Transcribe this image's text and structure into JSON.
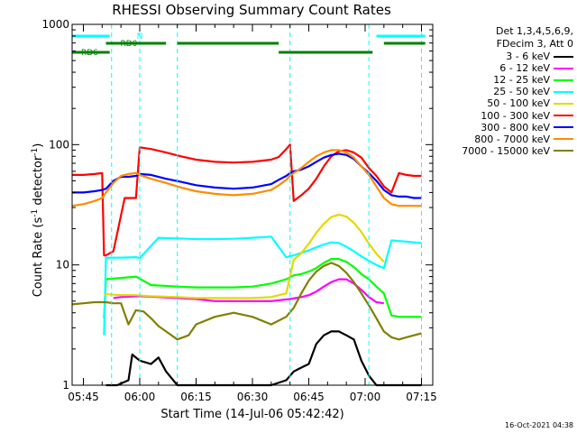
{
  "chart_data": {
    "type": "line",
    "title": "RHESSI Observing Summary Count Rates",
    "xlabel": "Start Time (14-Jul-06 05:42:42)",
    "ylabel_main": "Count Rate (s",
    "ylabel_sup1": "-1",
    "ylabel_mid": " detector",
    "ylabel_sup2": "-1",
    "ylabel_end": ")",
    "y_scale": "log",
    "ylim": [
      1,
      1000
    ],
    "xlim_minutes": [
      -3,
      93
    ],
    "x_ticks": [
      {
        "min": 0,
        "label": "05:45"
      },
      {
        "min": 15,
        "label": "06:00"
      },
      {
        "min": 30,
        "label": "06:15"
      },
      {
        "min": 45,
        "label": "06:30"
      },
      {
        "min": 60,
        "label": "06:45"
      },
      {
        "min": 75,
        "label": "07:00"
      },
      {
        "min": 90,
        "label": "07:15"
      }
    ],
    "y_ticks": [
      {
        "value": 1,
        "label": "1"
      },
      {
        "value": 10,
        "label": "10"
      },
      {
        "value": 100,
        "label": "100"
      },
      {
        "value": 1000,
        "label": "1000"
      }
    ],
    "legend_header": [
      "Det 1,3,4,5,6,9,",
      "FDecim 3, Att 0"
    ],
    "series": [
      {
        "name": "3 - 6 keV",
        "color": "#000000",
        "x": [
          6,
          7,
          9,
          12,
          13,
          15,
          18,
          20,
          22,
          25,
          30,
          35,
          40,
          45,
          50,
          54,
          56,
          58,
          60,
          62,
          64,
          66,
          68,
          70,
          72,
          74,
          76,
          78,
          80,
          82,
          84,
          86,
          88,
          90
        ],
        "y": [
          1,
          1,
          1,
          1.1,
          1.8,
          1.6,
          1.5,
          1.7,
          1.3,
          1,
          1,
          1,
          1,
          1,
          1,
          1.1,
          1.3,
          1.4,
          1.5,
          2.2,
          2.6,
          2.8,
          2.8,
          2.6,
          2.4,
          1.6,
          1.2,
          1,
          1,
          1,
          1,
          1,
          1,
          1
        ]
      },
      {
        "name": "6 - 12 keV",
        "color": "#ff00ff",
        "x": [
          8,
          10,
          15,
          20,
          25,
          30,
          35,
          40,
          45,
          50,
          55,
          58,
          60,
          62,
          64,
          66,
          68,
          70,
          72,
          74,
          76,
          78,
          80
        ],
        "y": [
          5.3,
          5.4,
          5.5,
          5.4,
          5.3,
          5.2,
          5.0,
          5.0,
          5.0,
          5.0,
          5.2,
          5.4,
          5.6,
          6.0,
          6.6,
          7.2,
          7.6,
          7.6,
          7.0,
          6.2,
          5.4,
          4.9,
          4.8
        ]
      },
      {
        "name": "12 - 25 keV",
        "color": "#00ff00",
        "x": [
          5.5,
          6,
          10,
          14,
          18,
          25,
          30,
          35,
          40,
          45,
          50,
          54,
          56,
          58,
          60,
          62,
          64,
          66,
          68,
          70,
          72,
          74,
          76,
          78,
          80,
          82,
          84,
          86,
          88,
          90
        ],
        "y": [
          3.6,
          7.6,
          7.8,
          8.0,
          6.8,
          6.6,
          6.5,
          6.5,
          6.5,
          6.6,
          7.0,
          7.6,
          8.2,
          8.4,
          8.8,
          9.4,
          10.4,
          11.2,
          11.2,
          10.6,
          9.6,
          8.4,
          7.6,
          6.6,
          5.8,
          3.8,
          3.7,
          3.7,
          3.7,
          3.7
        ]
      },
      {
        "name": "25 - 50 keV",
        "color": "#00ffff",
        "x": [
          5.5,
          6,
          10,
          14,
          15,
          20,
          25,
          30,
          35,
          40,
          45,
          50,
          54,
          56,
          58,
          60,
          62,
          64,
          66,
          68,
          70,
          72,
          74,
          76,
          78,
          80,
          82,
          84,
          86,
          88,
          90
        ],
        "y": [
          2.6,
          11.5,
          11.5,
          11.6,
          11.4,
          16.8,
          16.6,
          16.4,
          16.4,
          16.5,
          16.8,
          17.2,
          11.6,
          12,
          12.6,
          13.2,
          14,
          14.8,
          15.4,
          15.2,
          14.2,
          13,
          11.8,
          10.8,
          10,
          9.4,
          16,
          15.8,
          15.6,
          15.4,
          15.2
        ]
      },
      {
        "name": "50 - 100 keV",
        "color": "#e6d800",
        "x": [
          5.5,
          6,
          10,
          14,
          18,
          25,
          30,
          35,
          40,
          45,
          50,
          54,
          56,
          58,
          60,
          62,
          64,
          66,
          68,
          70,
          72,
          74,
          76,
          78,
          80
        ],
        "y": [
          5.6,
          5.7,
          5.6,
          5.6,
          5.5,
          5.4,
          5.3,
          5.3,
          5.3,
          5.3,
          5.4,
          5.8,
          11,
          12.5,
          15,
          18.5,
          22,
          25,
          26.2,
          25.2,
          22.4,
          18.8,
          15,
          12.4,
          10.6
        ]
      },
      {
        "name": "100 - 300 keV",
        "color": "#ff0000",
        "x": [
          -3,
          0,
          3,
          5,
          5.5,
          6,
          8,
          11,
          13,
          14,
          15,
          18,
          22,
          26,
          30,
          35,
          40,
          45,
          50,
          52,
          54,
          55,
          56,
          58,
          60,
          62,
          64,
          66,
          68,
          70,
          72,
          74,
          76,
          78,
          80,
          82,
          84,
          86,
          88,
          90
        ],
        "y": [
          56,
          56,
          57,
          58,
          12,
          12,
          13,
          36,
          36,
          36,
          95,
          92,
          86,
          80,
          75,
          72,
          71,
          72,
          75,
          79,
          92,
          100,
          34,
          38,
          43,
          52,
          66,
          80,
          88,
          90,
          86,
          78,
          64,
          55,
          45,
          40,
          58,
          56,
          55,
          55
        ]
      },
      {
        "name": "300 - 800 keV",
        "color": "#0000ff",
        "x": [
          -3,
          0,
          3,
          5,
          6,
          8,
          10,
          12,
          14,
          15,
          18,
          22,
          26,
          30,
          35,
          40,
          45,
          50,
          52,
          54,
          55,
          56,
          58,
          60,
          62,
          64,
          66,
          68,
          70,
          72,
          74,
          76,
          78,
          80,
          82,
          84,
          86,
          88,
          90
        ],
        "y": [
          40,
          40,
          41,
          42,
          43,
          50,
          54,
          54,
          55,
          57,
          56,
          52,
          49,
          46,
          44,
          43,
          44,
          47,
          51,
          55,
          58,
          60,
          62,
          66,
          72,
          78,
          82,
          84,
          82,
          76,
          66,
          58,
          50,
          42,
          38,
          37,
          37,
          36,
          36
        ]
      },
      {
        "name": "800 - 7000 keV",
        "color": "#ff8c00",
        "x": [
          -3,
          0,
          3,
          5,
          6,
          8,
          10,
          12,
          14,
          15,
          18,
          22,
          26,
          30,
          35,
          40,
          45,
          50,
          52,
          54,
          55,
          56,
          58,
          60,
          62,
          64,
          66,
          68,
          70,
          72,
          74,
          76,
          78,
          80,
          82,
          84,
          86,
          88,
          90
        ],
        "y": [
          31,
          32,
          34,
          36,
          40,
          48,
          55,
          57,
          58,
          56,
          52,
          48,
          44,
          41,
          39,
          38,
          39,
          42,
          46,
          51,
          55,
          58,
          64,
          72,
          80,
          86,
          90,
          90,
          86,
          78,
          66,
          56,
          45,
          36,
          32,
          31,
          31,
          31,
          31
        ]
      },
      {
        "name": "7000 - 15000 keV",
        "color": "#808000",
        "x": [
          -3,
          0,
          3,
          6,
          8,
          10,
          12,
          14,
          16,
          18,
          20,
          22,
          25,
          28,
          30,
          35,
          40,
          45,
          50,
          54,
          56,
          58,
          60,
          62,
          64,
          66,
          68,
          70,
          72,
          74,
          76,
          78,
          80,
          82,
          84,
          86,
          88,
          90
        ],
        "y": [
          4.7,
          4.8,
          4.9,
          4.9,
          4.8,
          4.8,
          3.2,
          4.2,
          4.1,
          3.6,
          3.1,
          2.8,
          2.4,
          2.6,
          3.2,
          3.7,
          4.0,
          3.7,
          3.2,
          3.7,
          4.4,
          5.8,
          7.4,
          8.8,
          9.8,
          10.4,
          9.8,
          8.6,
          7.2,
          5.8,
          4.6,
          3.6,
          2.8,
          2.5,
          2.4,
          2.5,
          2.6,
          2.7
        ]
      }
    ],
    "state_bars": [
      {
        "label": "RD0",
        "color": "#008000",
        "ranges": [
          [
            6,
            22
          ],
          [
            25,
            52
          ],
          [
            80,
            91
          ]
        ],
        "level": 0
      },
      {
        "label": "RD6",
        "color": "#008000",
        "ranges": [
          [
            -3,
            7
          ],
          [
            52,
            77
          ]
        ],
        "level": 1
      },
      {
        "label": "N",
        "color": "#00ffff",
        "ranges": [
          [
            -3,
            7
          ],
          [
            78,
            91
          ]
        ],
        "level": 2
      }
    ],
    "vertical_markers_minutes": [
      7.5,
      15,
      25,
      55,
      76,
      90
    ]
  },
  "timestamp": "16-Oct-2021 04:38"
}
